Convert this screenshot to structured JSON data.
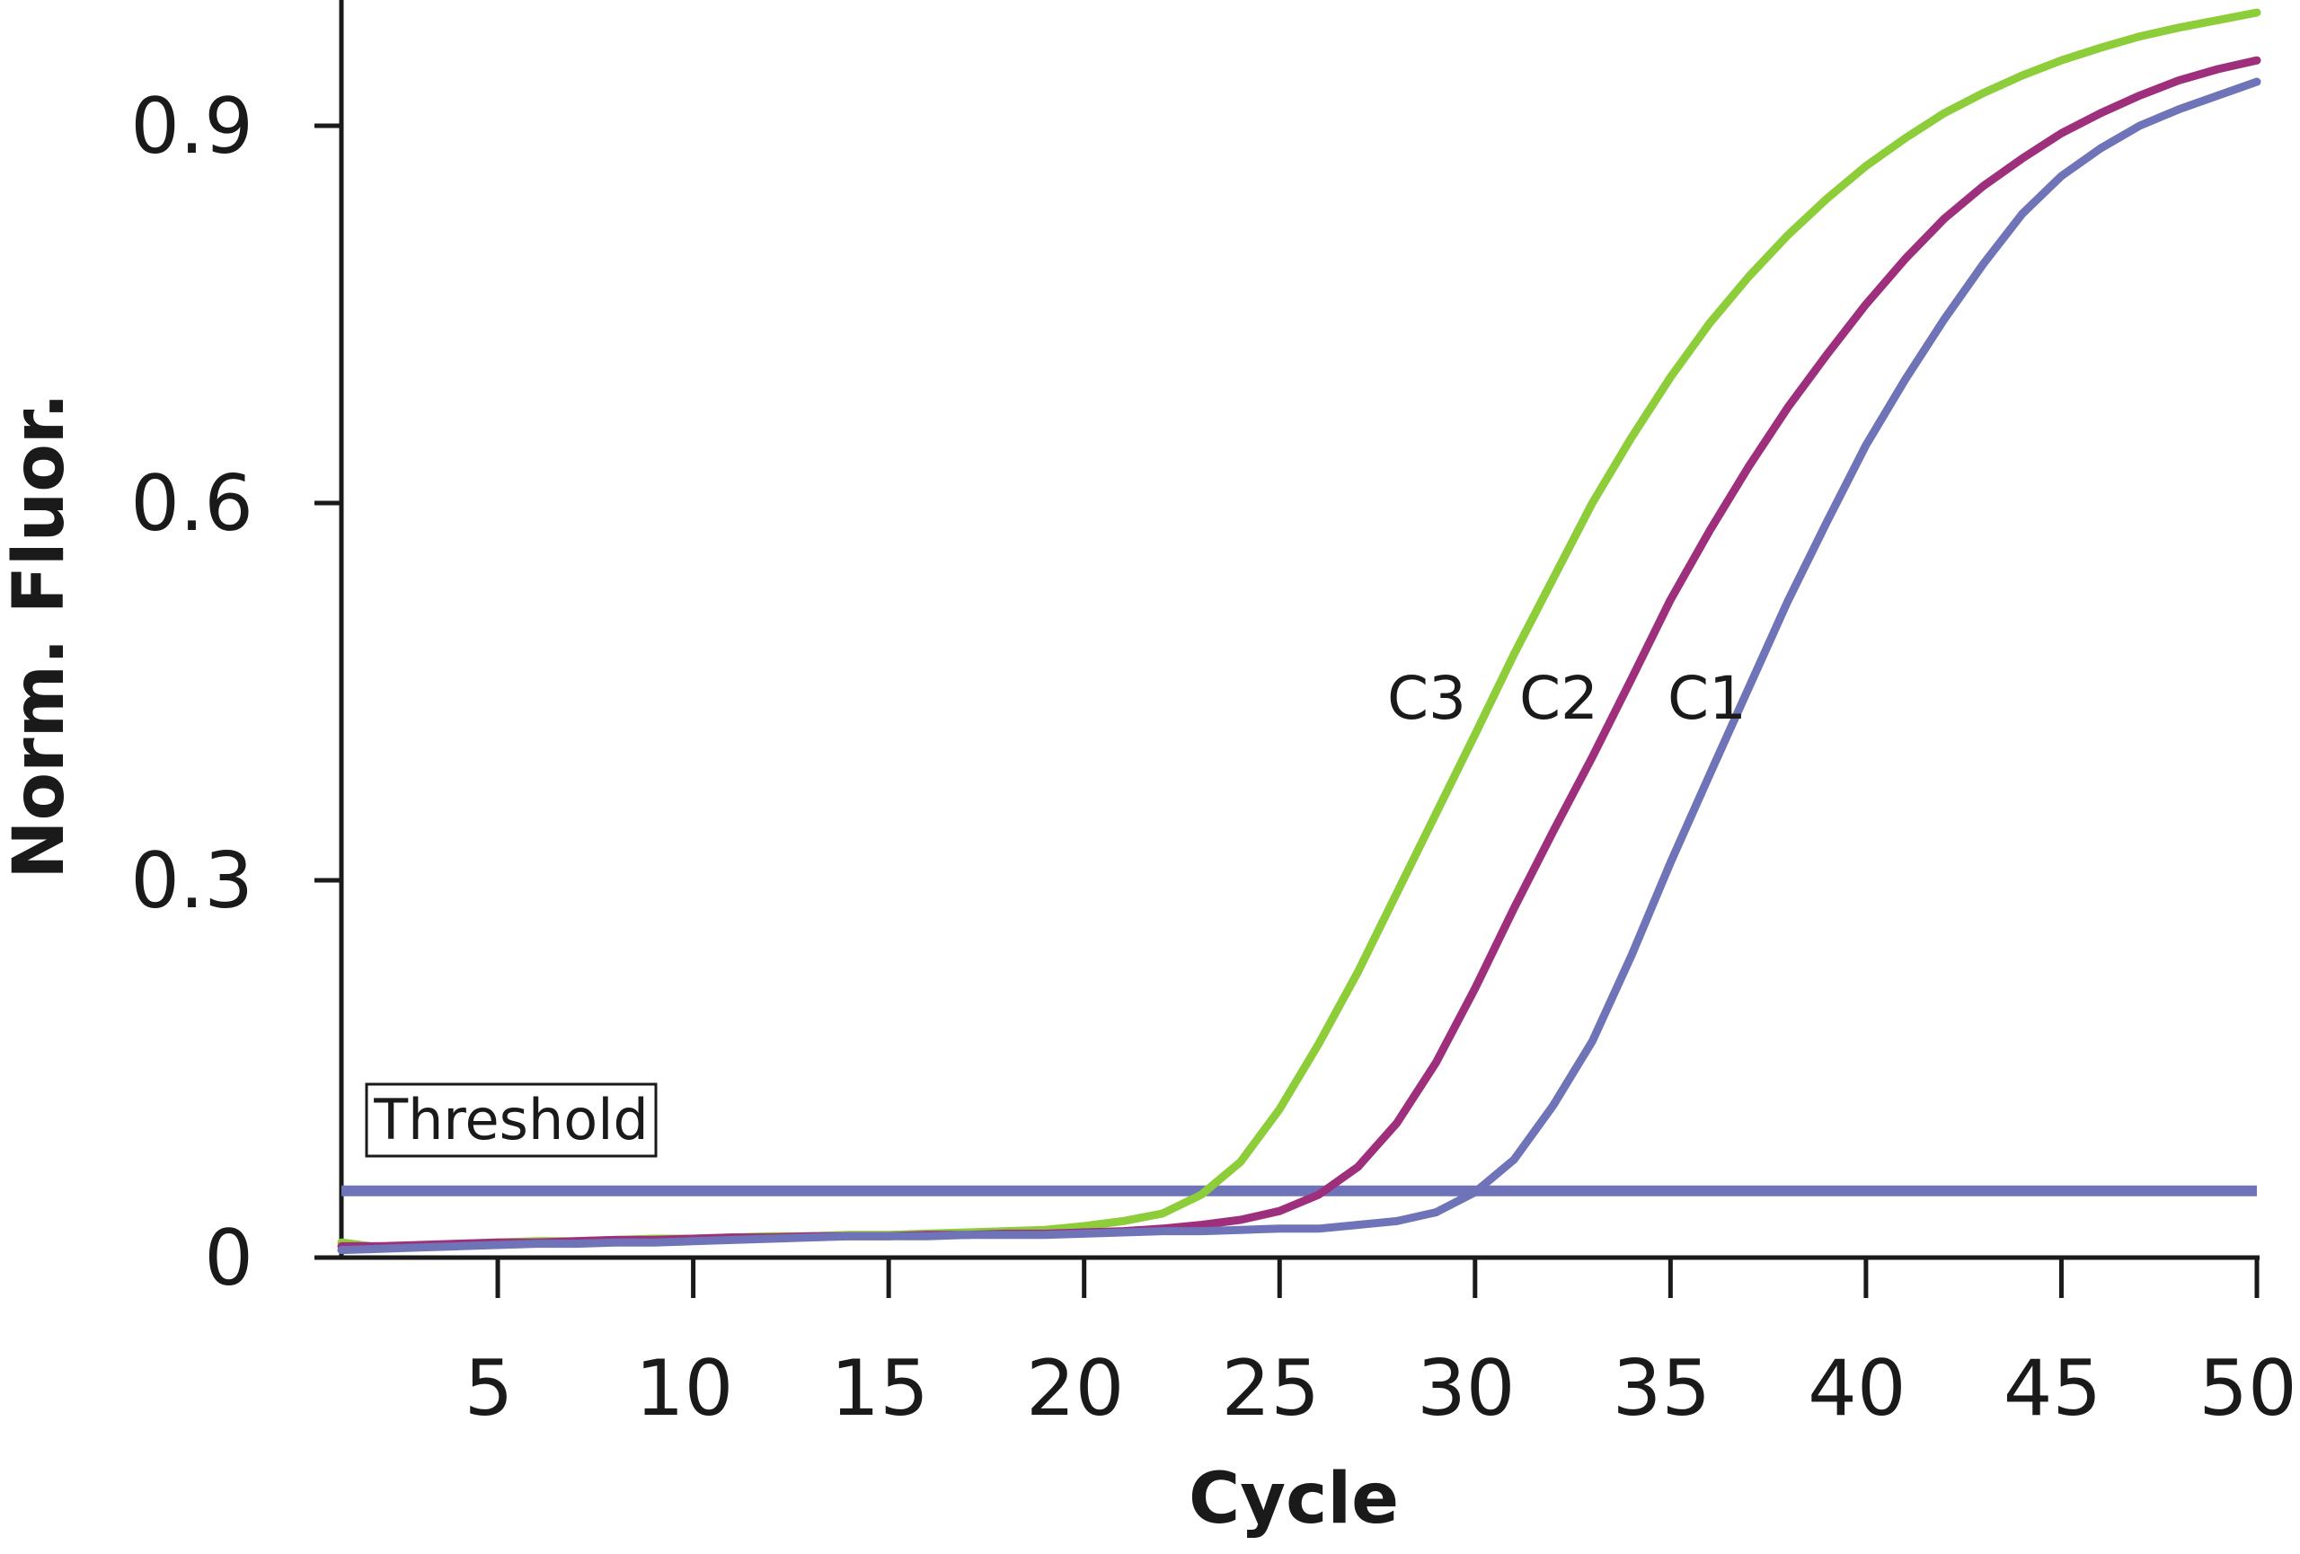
{
  "chart_data": {
    "type": "line",
    "xlabel": "Cycle",
    "ylabel": "Norm. Fluor.",
    "xlim": [
      1,
      50
    ],
    "ylim": [
      0,
      1.0
    ],
    "xticks": [
      5,
      10,
      15,
      20,
      25,
      30,
      35,
      40,
      45,
      50
    ],
    "xtick_labels": [
      "5",
      "10",
      "15",
      "20",
      "25",
      "30",
      "35",
      "40",
      "45",
      "50"
    ],
    "yticks": [
      0,
      0.3,
      0.6,
      0.9
    ],
    "ytick_labels": [
      "0",
      "0.3",
      "0.6",
      "0.9"
    ],
    "grid": false,
    "legend": "none",
    "threshold": {
      "label": "Threshold",
      "value": 0.053,
      "color": "#6f74b8"
    },
    "x": [
      1,
      2,
      3,
      4,
      5,
      6,
      7,
      8,
      9,
      10,
      11,
      12,
      13,
      14,
      15,
      16,
      17,
      18,
      19,
      20,
      21,
      22,
      23,
      24,
      25,
      26,
      27,
      28,
      29,
      30,
      31,
      32,
      33,
      34,
      35,
      36,
      37,
      38,
      39,
      40,
      41,
      42,
      43,
      44,
      45,
      46,
      47,
      48,
      49,
      50
    ],
    "series": [
      {
        "name": "C3",
        "color": "#8dcd3a",
        "values": [
          0.012,
          0.008,
          0.009,
          0.011,
          0.012,
          0.013,
          0.013,
          0.014,
          0.015,
          0.015,
          0.016,
          0.017,
          0.017,
          0.018,
          0.018,
          0.019,
          0.02,
          0.021,
          0.022,
          0.025,
          0.029,
          0.035,
          0.05,
          0.076,
          0.118,
          0.17,
          0.227,
          0.29,
          0.353,
          0.416,
          0.48,
          0.54,
          0.6,
          0.652,
          0.7,
          0.743,
          0.78,
          0.813,
          0.842,
          0.868,
          0.89,
          0.91,
          0.926,
          0.94,
          0.952,
          0.962,
          0.971,
          0.978,
          0.984,
          0.99
        ]
      },
      {
        "name": "C2",
        "color": "#9e2f7c",
        "values": [
          0.009,
          0.009,
          0.01,
          0.011,
          0.012,
          0.012,
          0.013,
          0.014,
          0.014,
          0.015,
          0.016,
          0.016,
          0.017,
          0.017,
          0.017,
          0.018,
          0.018,
          0.019,
          0.019,
          0.02,
          0.021,
          0.023,
          0.026,
          0.03,
          0.037,
          0.05,
          0.072,
          0.107,
          0.155,
          0.214,
          0.278,
          0.339,
          0.398,
          0.46,
          0.523,
          0.578,
          0.629,
          0.676,
          0.718,
          0.758,
          0.794,
          0.826,
          0.852,
          0.874,
          0.894,
          0.91,
          0.924,
          0.936,
          0.945,
          0.952
        ]
      },
      {
        "name": "C1",
        "color": "#6f74b8",
        "values": [
          0.006,
          0.007,
          0.008,
          0.009,
          0.01,
          0.011,
          0.011,
          0.012,
          0.012,
          0.013,
          0.014,
          0.015,
          0.016,
          0.017,
          0.017,
          0.017,
          0.018,
          0.018,
          0.018,
          0.019,
          0.02,
          0.021,
          0.021,
          0.022,
          0.023,
          0.023,
          0.026,
          0.029,
          0.036,
          0.052,
          0.078,
          0.121,
          0.172,
          0.24,
          0.314,
          0.384,
          0.453,
          0.522,
          0.585,
          0.646,
          0.698,
          0.746,
          0.79,
          0.83,
          0.86,
          0.882,
          0.9,
          0.913,
          0.924,
          0.935
        ]
      }
    ]
  }
}
